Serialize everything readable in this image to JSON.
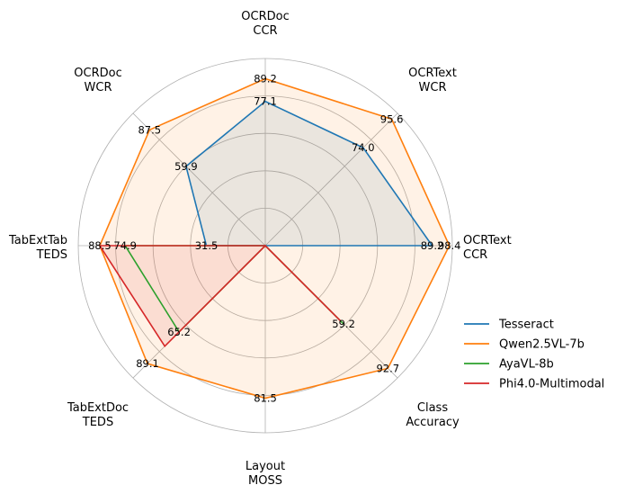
{
  "chart_data": {
    "type": "radar",
    "axes": [
      {
        "line1": "OCRText",
        "line2": "CCR"
      },
      {
        "line1": "OCRText",
        "line2": "WCR"
      },
      {
        "line1": "OCRDoc",
        "line2": "CCR"
      },
      {
        "line1": "OCRDoc",
        "line2": "WCR"
      },
      {
        "line1": "TabExtTab",
        "line2": "TEDS"
      },
      {
        "line1": "TabExtDoc",
        "line2": "TEDS"
      },
      {
        "line1": "Layout",
        "line2": "MOSS"
      },
      {
        "line1": "Class",
        "line2": "Accuracy"
      }
    ],
    "rlim": [
      0,
      100
    ],
    "grid": true,
    "legend_position": "right",
    "series": [
      {
        "name": "Tesseract",
        "color": "#1f77b4",
        "values": [
          89.2,
          74.0,
          77.1,
          59.9,
          31.5,
          0,
          0,
          0
        ],
        "fill": true
      },
      {
        "name": "Qwen2.5VL-7b",
        "color": "#ff7f0e",
        "values": [
          98.4,
          95.6,
          89.2,
          87.5,
          88.5,
          89.1,
          81.5,
          92.7
        ],
        "fill": true
      },
      {
        "name": "AyaVL-8b",
        "color": "#2ca02c",
        "values": [
          0,
          0,
          0,
          0,
          74.9,
          65.2,
          0,
          59.2
        ],
        "fill": false
      },
      {
        "name": "Phi4.0-Multimodal",
        "color": "#d62728",
        "values": [
          0,
          0,
          0,
          0,
          88.5,
          76.0,
          0,
          57.0
        ],
        "fill": true
      }
    ],
    "data_labels": [
      {
        "axis": 0,
        "value": 98.4,
        "text": "98.4"
      },
      {
        "axis": 0,
        "value": 89.2,
        "text": "89.2"
      },
      {
        "axis": 1,
        "value": 95.6,
        "text": "95.6"
      },
      {
        "axis": 1,
        "value": 74.0,
        "text": "74.0"
      },
      {
        "axis": 2,
        "value": 89.2,
        "text": "89.2"
      },
      {
        "axis": 2,
        "value": 77.1,
        "text": "77.1"
      },
      {
        "axis": 3,
        "value": 87.5,
        "text": "87.5"
      },
      {
        "axis": 3,
        "value": 59.9,
        "text": "59.9"
      },
      {
        "axis": 4,
        "value": 88.5,
        "text": "88.5"
      },
      {
        "axis": 4,
        "value": 74.9,
        "text": "74.9"
      },
      {
        "axis": 4,
        "value": 31.5,
        "text": "31.5"
      },
      {
        "axis": 5,
        "value": 89.1,
        "text": "89.1"
      },
      {
        "axis": 5,
        "value": 65.2,
        "text": "65.2"
      },
      {
        "axis": 6,
        "value": 81.5,
        "text": "81.5"
      },
      {
        "axis": 7,
        "value": 92.7,
        "text": "92.7"
      },
      {
        "axis": 7,
        "value": 59.2,
        "text": "59.2"
      }
    ]
  }
}
